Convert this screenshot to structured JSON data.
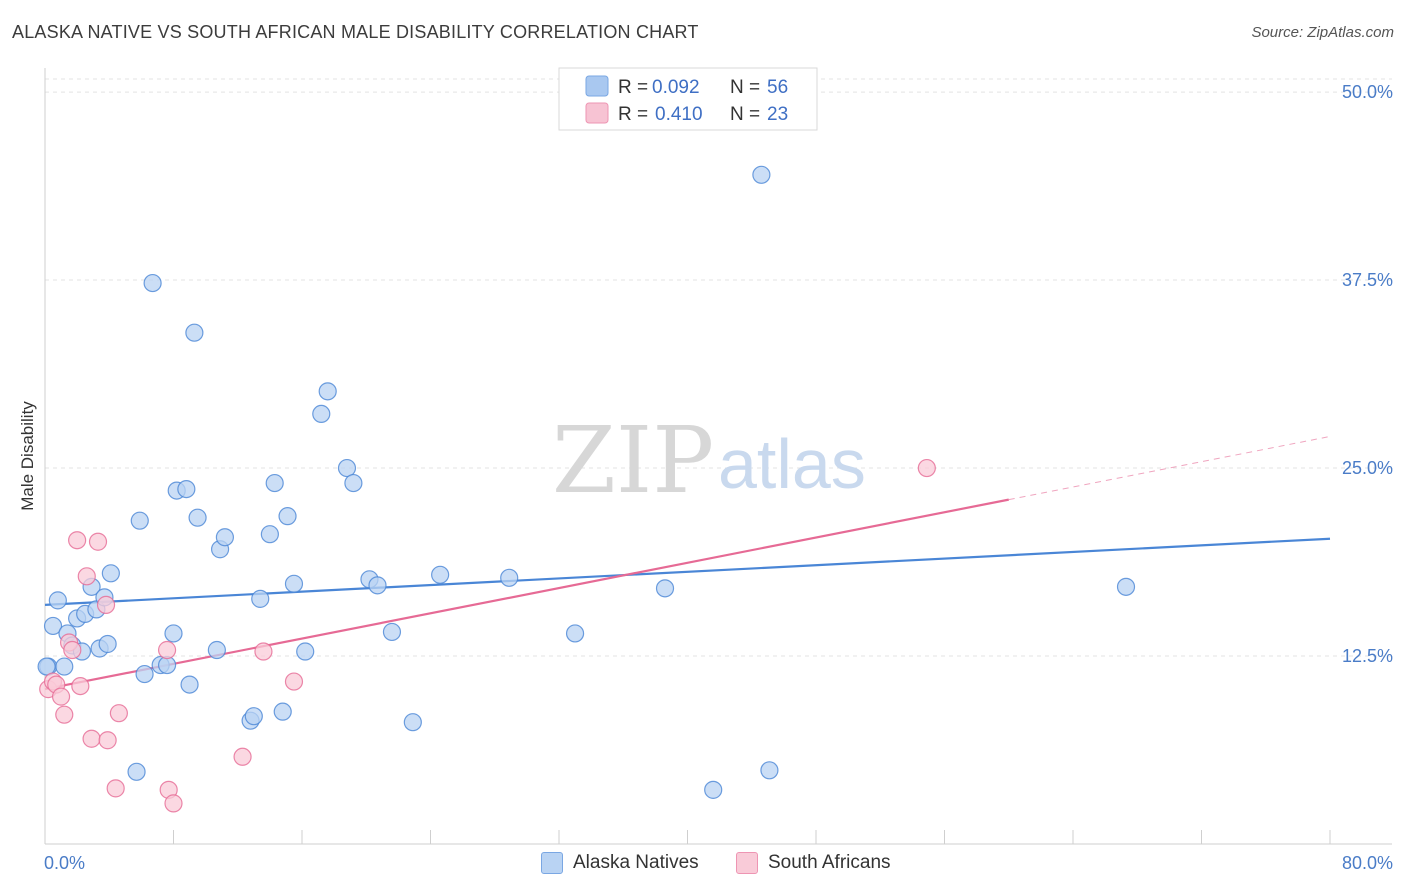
{
  "title": "ALASKA NATIVE VS SOUTH AFRICAN MALE DISABILITY CORRELATION CHART",
  "source": "Source: ZipAtlas.com",
  "watermark": {
    "zip": "ZIP",
    "atlas": "atlas"
  },
  "legend": {
    "r_label": "R =",
    "n_label": "N =",
    "rows": [
      {
        "r": "0.092",
        "n": "56",
        "color": "#a9c8f0",
        "border": "#7aa7e3"
      },
      {
        "r": "0.410",
        "n": "23",
        "color": "#f7c3d3",
        "border": "#ee95b3"
      }
    ]
  },
  "bottom_legend": [
    {
      "label": "Alaska Natives",
      "color": "#b9d3f3",
      "border": "#7aa7e3"
    },
    {
      "label": "South Africans",
      "color": "#f9cbd8",
      "border": "#ee95b3"
    }
  ],
  "chart_data": {
    "type": "scatter",
    "title": "ALASKA NATIVE VS SOUTH AFRICAN MALE DISABILITY CORRELATION CHART",
    "xlabel": "",
    "ylabel": "Male Disability",
    "xlim": [
      0,
      80
    ],
    "ylim": [
      0,
      52
    ],
    "x_tick_labels": [
      "0.0%",
      "80.0%"
    ],
    "y_ticks": [
      12.5,
      25.0,
      37.5,
      50.0
    ],
    "y_tick_labels": [
      "12.5%",
      "25.0%",
      "37.5%",
      "50.0%"
    ],
    "grid": true,
    "series": [
      {
        "name": "Alaska Natives",
        "color": "#4a86d6",
        "fill": "#b9d3f3",
        "trend": {
          "x": [
            0,
            80
          ],
          "y": [
            15.9,
            20.3
          ]
        },
        "points": [
          [
            0.2,
            11.8
          ],
          [
            0.5,
            14.5
          ],
          [
            0.8,
            16.2
          ],
          [
            1.2,
            11.8
          ],
          [
            1.4,
            14.0
          ],
          [
            1.7,
            13.2
          ],
          [
            2.0,
            15.0
          ],
          [
            2.3,
            12.8
          ],
          [
            2.5,
            15.3
          ],
          [
            2.9,
            17.1
          ],
          [
            3.2,
            15.6
          ],
          [
            3.4,
            13.0
          ],
          [
            3.7,
            16.4
          ],
          [
            3.9,
            13.3
          ],
          [
            4.1,
            18.0
          ],
          [
            5.7,
            4.8
          ],
          [
            5.9,
            21.5
          ],
          [
            6.2,
            11.3
          ],
          [
            6.7,
            37.3
          ],
          [
            7.2,
            11.9
          ],
          [
            7.6,
            11.9
          ],
          [
            8.0,
            14.0
          ],
          [
            8.2,
            23.5
          ],
          [
            8.8,
            23.6
          ],
          [
            9.0,
            10.6
          ],
          [
            9.3,
            34.0
          ],
          [
            9.5,
            21.7
          ],
          [
            10.7,
            12.9
          ],
          [
            10.9,
            19.6
          ],
          [
            11.2,
            20.4
          ],
          [
            12.8,
            8.2
          ],
          [
            13.0,
            8.5
          ],
          [
            13.4,
            16.3
          ],
          [
            14.0,
            20.6
          ],
          [
            14.3,
            24.0
          ],
          [
            14.8,
            8.8
          ],
          [
            15.1,
            21.8
          ],
          [
            15.5,
            17.3
          ],
          [
            16.2,
            12.8
          ],
          [
            17.2,
            28.6
          ],
          [
            17.6,
            30.1
          ],
          [
            18.8,
            25.0
          ],
          [
            19.2,
            24.0
          ],
          [
            20.2,
            17.6
          ],
          [
            20.7,
            17.2
          ],
          [
            21.6,
            14.1
          ],
          [
            22.9,
            8.1
          ],
          [
            24.6,
            17.9
          ],
          [
            28.9,
            17.7
          ],
          [
            33.0,
            14.0
          ],
          [
            38.6,
            17.0
          ],
          [
            41.6,
            3.6
          ],
          [
            44.6,
            44.5
          ],
          [
            45.1,
            4.9
          ],
          [
            67.3,
            17.1
          ],
          [
            0.1,
            11.8
          ]
        ]
      },
      {
        "name": "South Africans",
        "color": "#e66a95",
        "fill": "#f9cbd8",
        "trend": {
          "x": [
            0,
            60.0
          ],
          "y": [
            10.3,
            22.9
          ]
        },
        "trend_dashed": {
          "x": [
            60.0,
            80
          ],
          "y": [
            22.9,
            27.1
          ]
        },
        "points": [
          [
            0.2,
            10.3
          ],
          [
            0.5,
            10.8
          ],
          [
            0.7,
            10.6
          ],
          [
            1.0,
            9.8
          ],
          [
            1.2,
            8.6
          ],
          [
            1.5,
            13.4
          ],
          [
            1.7,
            12.9
          ],
          [
            2.0,
            20.2
          ],
          [
            2.2,
            10.5
          ],
          [
            2.6,
            17.8
          ],
          [
            2.9,
            7.0
          ],
          [
            3.3,
            20.1
          ],
          [
            3.8,
            15.9
          ],
          [
            3.9,
            6.9
          ],
          [
            4.4,
            3.7
          ],
          [
            4.6,
            8.7
          ],
          [
            7.6,
            12.9
          ],
          [
            7.7,
            3.6
          ],
          [
            8.0,
            2.7
          ],
          [
            12.3,
            5.8
          ],
          [
            13.6,
            12.8
          ],
          [
            15.5,
            10.8
          ],
          [
            54.9,
            25.0
          ]
        ]
      }
    ]
  }
}
